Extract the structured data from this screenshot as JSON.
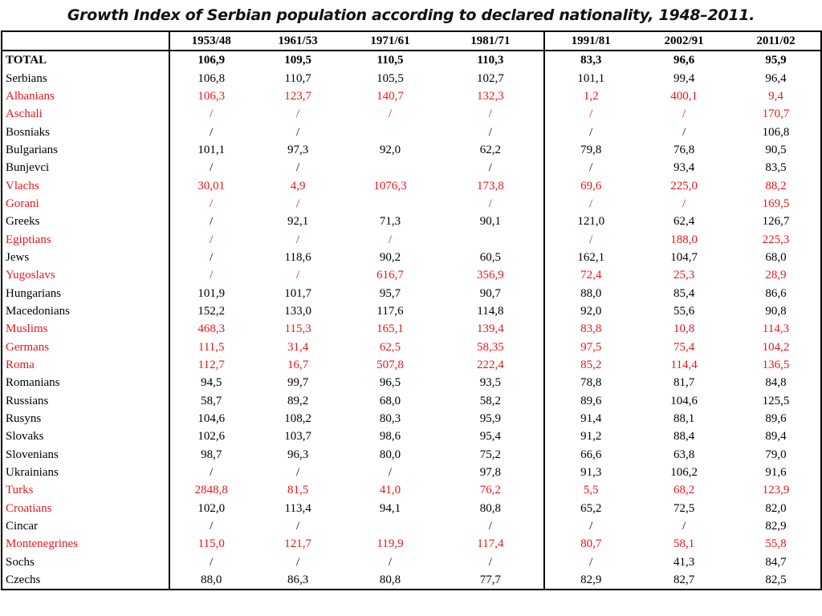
{
  "title": "Growth Index of Serbian population according to declared nationality, 1948–2011.",
  "columns": [
    "1953/48",
    "1961/53",
    "1971/61",
    "1981/71",
    "1991/81",
    "2002/91",
    "2011/02"
  ],
  "total": {
    "name": "TOTAL",
    "values": [
      "106,9",
      "109,5",
      "110,5",
      "110,3",
      "83,3",
      "96,6",
      "95,9"
    ]
  },
  "rows": [
    {
      "name": "Serbians",
      "red_name": false,
      "red_values": false,
      "values": [
        "106,8",
        "110,7",
        "105,5",
        "102,7",
        "101,1",
        "99,4",
        "96,4"
      ]
    },
    {
      "name": "Albanians",
      "red_name": true,
      "red_values": true,
      "values": [
        "106,3",
        "123,7",
        "140,7",
        "132,3",
        "1,2",
        "400,1",
        "9,4"
      ]
    },
    {
      "name": "Aschali",
      "red_name": true,
      "red_values": true,
      "values": [
        "/",
        "/",
        "/",
        "/",
        "/",
        "/",
        "170,7"
      ]
    },
    {
      "name": "Bosniaks",
      "red_name": false,
      "red_values": false,
      "values": [
        "/",
        "/",
        "",
        "/",
        "/",
        "/",
        "106,8"
      ]
    },
    {
      "name": "Bulgarians",
      "red_name": false,
      "red_values": false,
      "values": [
        "101,1",
        "97,3",
        "92,0",
        "62,2",
        "79,8",
        "76,8",
        "90,5"
      ]
    },
    {
      "name": "Bunjevci",
      "red_name": false,
      "red_values": false,
      "values": [
        "/",
        "/",
        "",
        "/",
        "/",
        "93,4",
        "83,5"
      ]
    },
    {
      "name": "Vlachs",
      "red_name": true,
      "red_values": true,
      "values": [
        "30,01",
        "4,9",
        "1076,3",
        "173,8",
        "69,6",
        "225,0",
        "88,2"
      ]
    },
    {
      "name": "Gorani",
      "red_name": true,
      "red_values": true,
      "values": [
        "/",
        "/",
        "",
        "/",
        "/",
        "/",
        "169,5"
      ]
    },
    {
      "name": "Greeks",
      "red_name": false,
      "red_values": false,
      "values": [
        "/",
        "92,1",
        "71,3",
        "90,1",
        "121,0",
        "62,4",
        "126,7"
      ]
    },
    {
      "name": "Egiptians",
      "red_name": true,
      "red_values": true,
      "values": [
        "/",
        "/",
        "/",
        "",
        "/",
        "188,0",
        "225,3"
      ]
    },
    {
      "name": "Jews",
      "red_name": false,
      "red_values": false,
      "values": [
        "/",
        "118,6",
        "90,2",
        "60,5",
        "162,1",
        "104,7",
        "68,0"
      ]
    },
    {
      "name": "Yugoslavs",
      "red_name": true,
      "red_values": true,
      "values": [
        "/",
        "/",
        "616,7",
        "356,9",
        "72,4",
        "25,3",
        "28,9"
      ]
    },
    {
      "name": "Hungarians",
      "red_name": false,
      "red_values": false,
      "values": [
        "101,9",
        "101,7",
        "95,7",
        "90,7",
        "88,0",
        "85,4",
        "86,6"
      ]
    },
    {
      "name": "Macedonians",
      "red_name": false,
      "red_values": false,
      "values": [
        "152,2",
        "133,0",
        "117,6",
        "114,8",
        "92,0",
        "55,6",
        "90,8"
      ]
    },
    {
      "name": "Muslims",
      "red_name": true,
      "red_values": true,
      "values": [
        "468,3",
        "115,3",
        "165,1",
        "139,4",
        "83,8",
        "10,8",
        "114,3"
      ]
    },
    {
      "name": "Germans",
      "red_name": true,
      "red_values": true,
      "values": [
        "111,5",
        "31,4",
        "62,5",
        "58,35",
        "97,5",
        "75,4",
        "104,2"
      ]
    },
    {
      "name": "Roma",
      "red_name": true,
      "red_values": true,
      "values": [
        "112,7",
        "16,7",
        "507,8",
        "222,4",
        "85,2",
        "114,4",
        "136,5"
      ]
    },
    {
      "name": "Romanians",
      "red_name": false,
      "red_values": false,
      "values": [
        "94,5",
        "99,7",
        "96,5",
        "93,5",
        "78,8",
        "81,7",
        "84,8"
      ]
    },
    {
      "name": "Russians",
      "red_name": false,
      "red_values": false,
      "values": [
        "58,7",
        "89,2",
        "68,0",
        "58,2",
        "89,6",
        "104,6",
        "125,5"
      ]
    },
    {
      "name": "Rusyns",
      "red_name": false,
      "red_values": false,
      "values": [
        "104,6",
        "108,2",
        "80,3",
        "95,9",
        "91,4",
        "88,1",
        "89,6"
      ]
    },
    {
      "name": "Slovaks",
      "red_name": false,
      "red_values": false,
      "values": [
        "102,6",
        "103,7",
        "98,6",
        "95,4",
        "91,2",
        "88,4",
        "89,4"
      ]
    },
    {
      "name": "Slovenians",
      "red_name": false,
      "red_values": false,
      "values": [
        "98,7",
        "96,3",
        "80,0",
        "75,2",
        "66,6",
        "63,8",
        "79,0"
      ]
    },
    {
      "name": "Ukrainians",
      "red_name": false,
      "red_values": false,
      "values": [
        "/",
        "/",
        "/",
        "97,8",
        "91,3",
        "106,2",
        "91,6"
      ]
    },
    {
      "name": "Turks",
      "red_name": true,
      "red_values": true,
      "values": [
        "2848,8",
        "81,5",
        "41,0",
        "76,2",
        "5,5",
        "68,2",
        "123,9"
      ]
    },
    {
      "name": "Croatians",
      "red_name": true,
      "red_values": false,
      "values": [
        "102,0",
        "113,4",
        "94,1",
        "80,8",
        "65,2",
        "72,5",
        "82,0"
      ]
    },
    {
      "name": "Cincar",
      "red_name": false,
      "red_values": false,
      "values": [
        "/",
        "/",
        "",
        "/",
        "/",
        "/",
        "82,9"
      ]
    },
    {
      "name": "Montenegrines",
      "red_name": true,
      "red_values": true,
      "values": [
        "115,0",
        "121,7",
        "119,9",
        "117,4",
        "80,7",
        "58,1",
        "55,8"
      ]
    },
    {
      "name": "Sochs",
      "red_name": false,
      "red_values": false,
      "values": [
        "/",
        "/",
        "/",
        "/",
        "/",
        "41,3",
        "84,7"
      ]
    },
    {
      "name": "Czechs",
      "red_name": false,
      "red_values": false,
      "values": [
        "88,0",
        "86,3",
        "80,8",
        "77,7",
        "82,9",
        "82,7",
        "82,5"
      ]
    }
  ],
  "colors": {
    "highlight": "#e8161b",
    "text": "#000000"
  }
}
